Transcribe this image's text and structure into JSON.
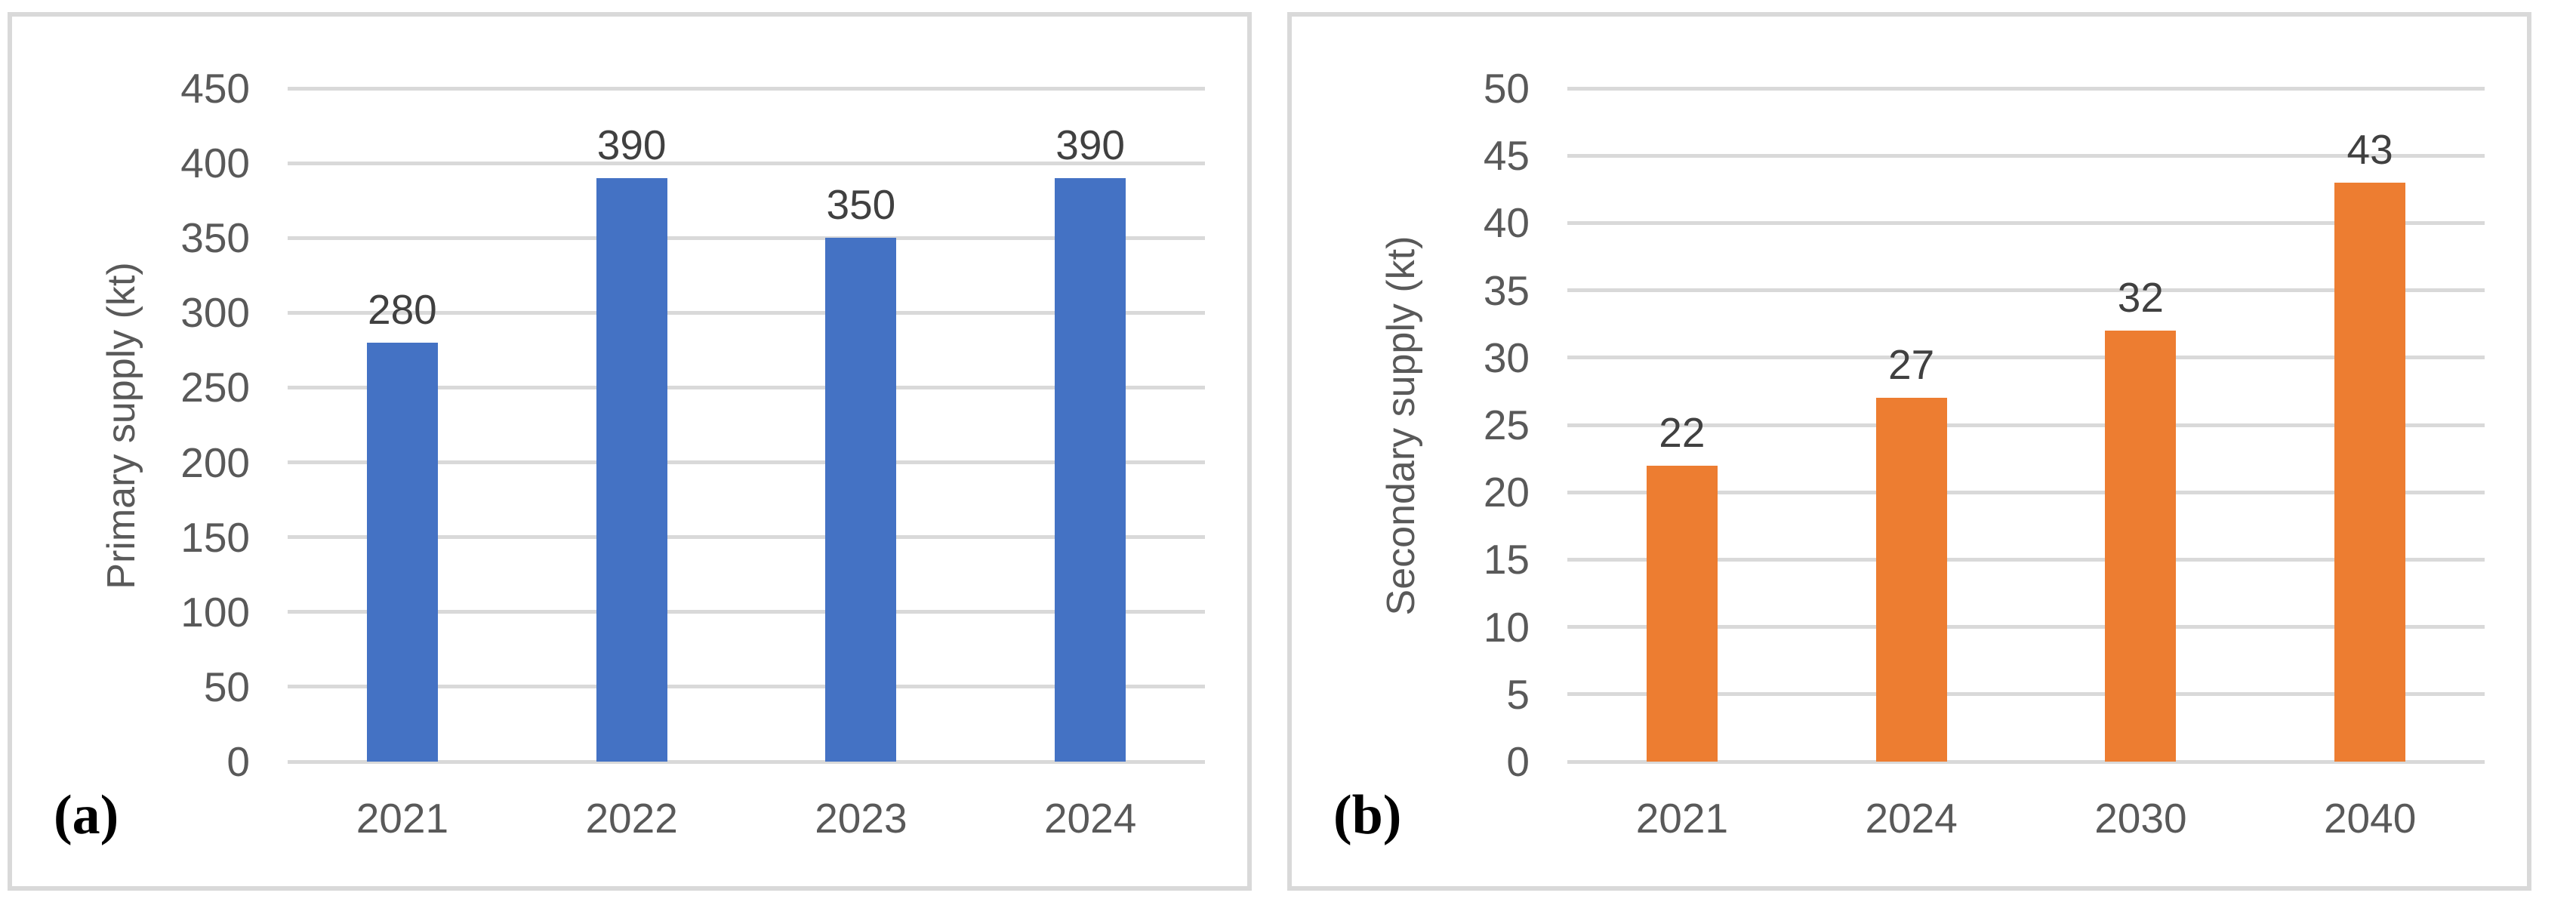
{
  "colors": {
    "background": "#ffffff",
    "panel_border": "#d9d9d9",
    "gridline": "#d9d9d9",
    "axis_text": "#595959",
    "data_label_text": "#404040",
    "primary_bar": "#4472c4",
    "secondary_bar": "#ed7d31"
  },
  "chart_data": [
    {
      "type": "bar",
      "panel_label": "(a)",
      "title": "",
      "xlabel": "",
      "ylabel": "Primary supply (kt)",
      "categories": [
        "2021",
        "2022",
        "2023",
        "2024"
      ],
      "values": [
        280,
        390,
        350,
        390
      ],
      "data_labels": [
        "280",
        "390",
        "350",
        "390"
      ],
      "ylim": [
        0,
        450
      ],
      "ytick_step": 50,
      "yticks": [
        0,
        50,
        100,
        150,
        200,
        250,
        300,
        350,
        400,
        450
      ],
      "bar_color": "#4472c4",
      "grid": true,
      "legend": "none"
    },
    {
      "type": "bar",
      "panel_label": "(b)",
      "title": "",
      "xlabel": "",
      "ylabel": "Secondary supply (kt)",
      "categories": [
        "2021",
        "2024",
        "2030",
        "2040"
      ],
      "values": [
        22,
        27,
        32,
        43
      ],
      "data_labels": [
        "22",
        "27",
        "32",
        "43"
      ],
      "ylim": [
        0,
        50
      ],
      "ytick_step": 5,
      "yticks": [
        0,
        5,
        10,
        15,
        20,
        25,
        30,
        35,
        40,
        45,
        50
      ],
      "bar_color": "#ed7d31",
      "grid": true,
      "legend": "none"
    }
  ]
}
